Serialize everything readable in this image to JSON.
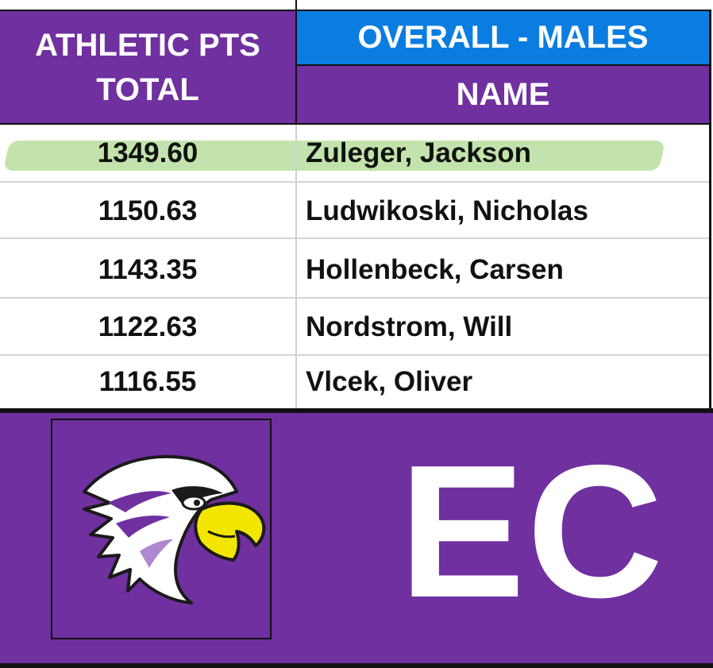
{
  "header": {
    "left_line1": "ATHLETIC PTS",
    "left_line2": "TOTAL",
    "category": "OVERALL - MALES",
    "name_col": "NAME"
  },
  "rows": [
    {
      "points": "1349.60",
      "name": "Zuleger, Jackson",
      "highlighted": true
    },
    {
      "points": "1150.63",
      "name": "Ludwikoski, Nicholas",
      "highlighted": false
    },
    {
      "points": "1143.35",
      "name": "Hollenbeck, Carsen",
      "highlighted": false
    },
    {
      "points": "1122.63",
      "name": "Nordstrom, Will",
      "highlighted": false
    },
    {
      "points": "1116.55",
      "name": "Vlcek, Oliver",
      "highlighted": false
    }
  ],
  "banner": {
    "initials": "EC",
    "logo_icon": "eagle-head-icon"
  },
  "colors": {
    "purple": "#7030a0",
    "blue": "#0b7de1",
    "highlight": "#bfe3a8",
    "beak": "#f2e600"
  }
}
